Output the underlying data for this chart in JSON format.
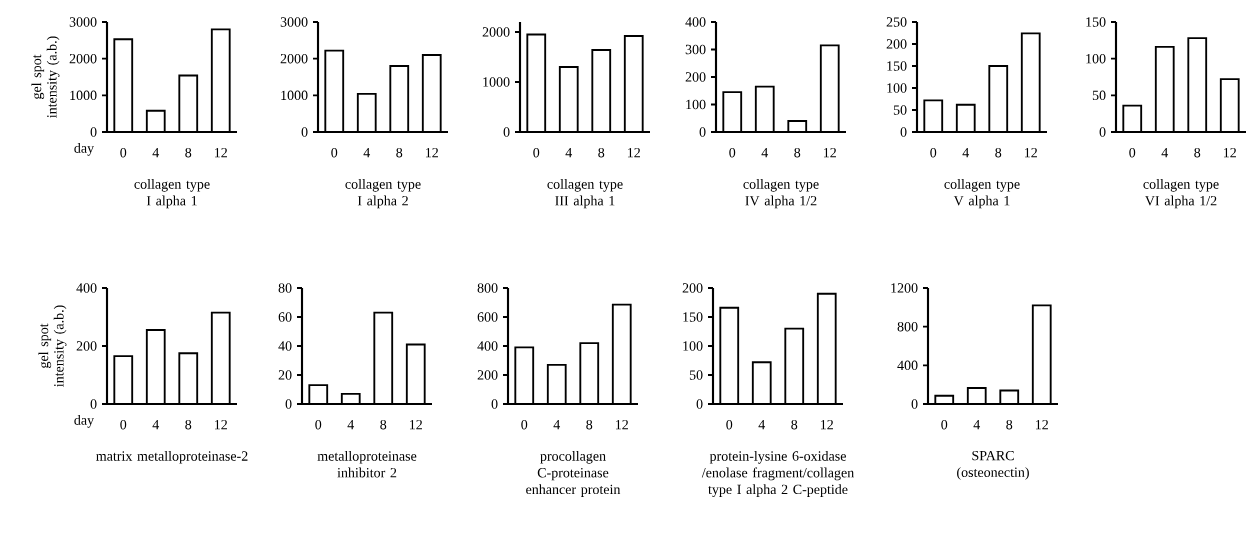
{
  "chart_data": [
    {
      "type": "bar",
      "title": "collagen type I alpha 1",
      "ylabel": "gel spot intensity (a.b.)",
      "xlabel": "day",
      "categories": [
        "0",
        "4",
        "8",
        "12"
      ],
      "values": [
        2530,
        580,
        1540,
        2800
      ],
      "ylim": [
        0,
        3000
      ],
      "yticks": [
        0,
        1000,
        2000,
        3000
      ]
    },
    {
      "type": "bar",
      "title": "collagen type I alpha 2",
      "categories": [
        "0",
        "4",
        "8",
        "12"
      ],
      "values": [
        2220,
        1040,
        1800,
        2100
      ],
      "ylim": [
        0,
        3000
      ],
      "yticks": [
        0,
        1000,
        2000,
        3000
      ]
    },
    {
      "type": "bar",
      "title": "collagen type III alpha 1",
      "categories": [
        "0",
        "4",
        "8",
        "12"
      ],
      "values": [
        1950,
        1300,
        1640,
        1920
      ],
      "ylim": [
        0,
        2200
      ],
      "yticks": [
        0,
        1000,
        2000
      ]
    },
    {
      "type": "bar",
      "title": "collagen type IV alpha 1/2",
      "categories": [
        "0",
        "4",
        "8",
        "12"
      ],
      "values": [
        145,
        165,
        40,
        315
      ],
      "ylim": [
        0,
        400
      ],
      "yticks": [
        0,
        100,
        200,
        300,
        400
      ]
    },
    {
      "type": "bar",
      "title": "collagen type V alpha 1",
      "categories": [
        "0",
        "4",
        "8",
        "12"
      ],
      "values": [
        72,
        62,
        150,
        224
      ],
      "ylim": [
        0,
        250
      ],
      "yticks": [
        0,
        50,
        100,
        150,
        200,
        250
      ]
    },
    {
      "type": "bar",
      "title": "collagen type VI alpha 1/2",
      "categories": [
        "0",
        "4",
        "8",
        "12"
      ],
      "values": [
        36,
        116,
        128,
        72
      ],
      "ylim": [
        0,
        150
      ],
      "yticks": [
        0,
        50,
        100,
        150
      ]
    },
    {
      "type": "bar",
      "title": "matrix metalloproteinase-2",
      "ylabel": "gel spot intensity (a.b.)",
      "xlabel": "day",
      "categories": [
        "0",
        "4",
        "8",
        "12"
      ],
      "values": [
        165,
        255,
        175,
        315
      ],
      "ylim": [
        0,
        400
      ],
      "yticks": [
        0,
        200,
        400
      ]
    },
    {
      "type": "bar",
      "title": "metalloproteinase inhibitor 2",
      "categories": [
        "0",
        "4",
        "8",
        "12"
      ],
      "values": [
        13,
        7,
        63,
        41
      ],
      "ylim": [
        0,
        80
      ],
      "yticks": [
        0,
        20,
        40,
        60,
        80
      ]
    },
    {
      "type": "bar",
      "title": "procollagen C-proteinase enhancer protein",
      "categories": [
        "0",
        "4",
        "8",
        "12"
      ],
      "values": [
        390,
        270,
        420,
        685
      ],
      "ylim": [
        0,
        800
      ],
      "yticks": [
        0,
        200,
        400,
        600,
        800
      ]
    },
    {
      "type": "bar",
      "title": "protein-lysine 6-oxidase /enolase fragment/collagen type I alpha 2 C-peptide",
      "categories": [
        "0",
        "4",
        "8",
        "12"
      ],
      "values": [
        166,
        72,
        130,
        190
      ],
      "ylim": [
        0,
        200
      ],
      "yticks": [
        0,
        50,
        100,
        150,
        200
      ]
    },
    {
      "type": "bar",
      "title": "SPARC (osteonectin)",
      "categories": [
        "0",
        "4",
        "8",
        "12"
      ],
      "values": [
        85,
        165,
        140,
        1020
      ],
      "ylim": [
        0,
        1200
      ],
      "yticks": [
        0,
        400,
        800,
        1200
      ]
    }
  ]
}
